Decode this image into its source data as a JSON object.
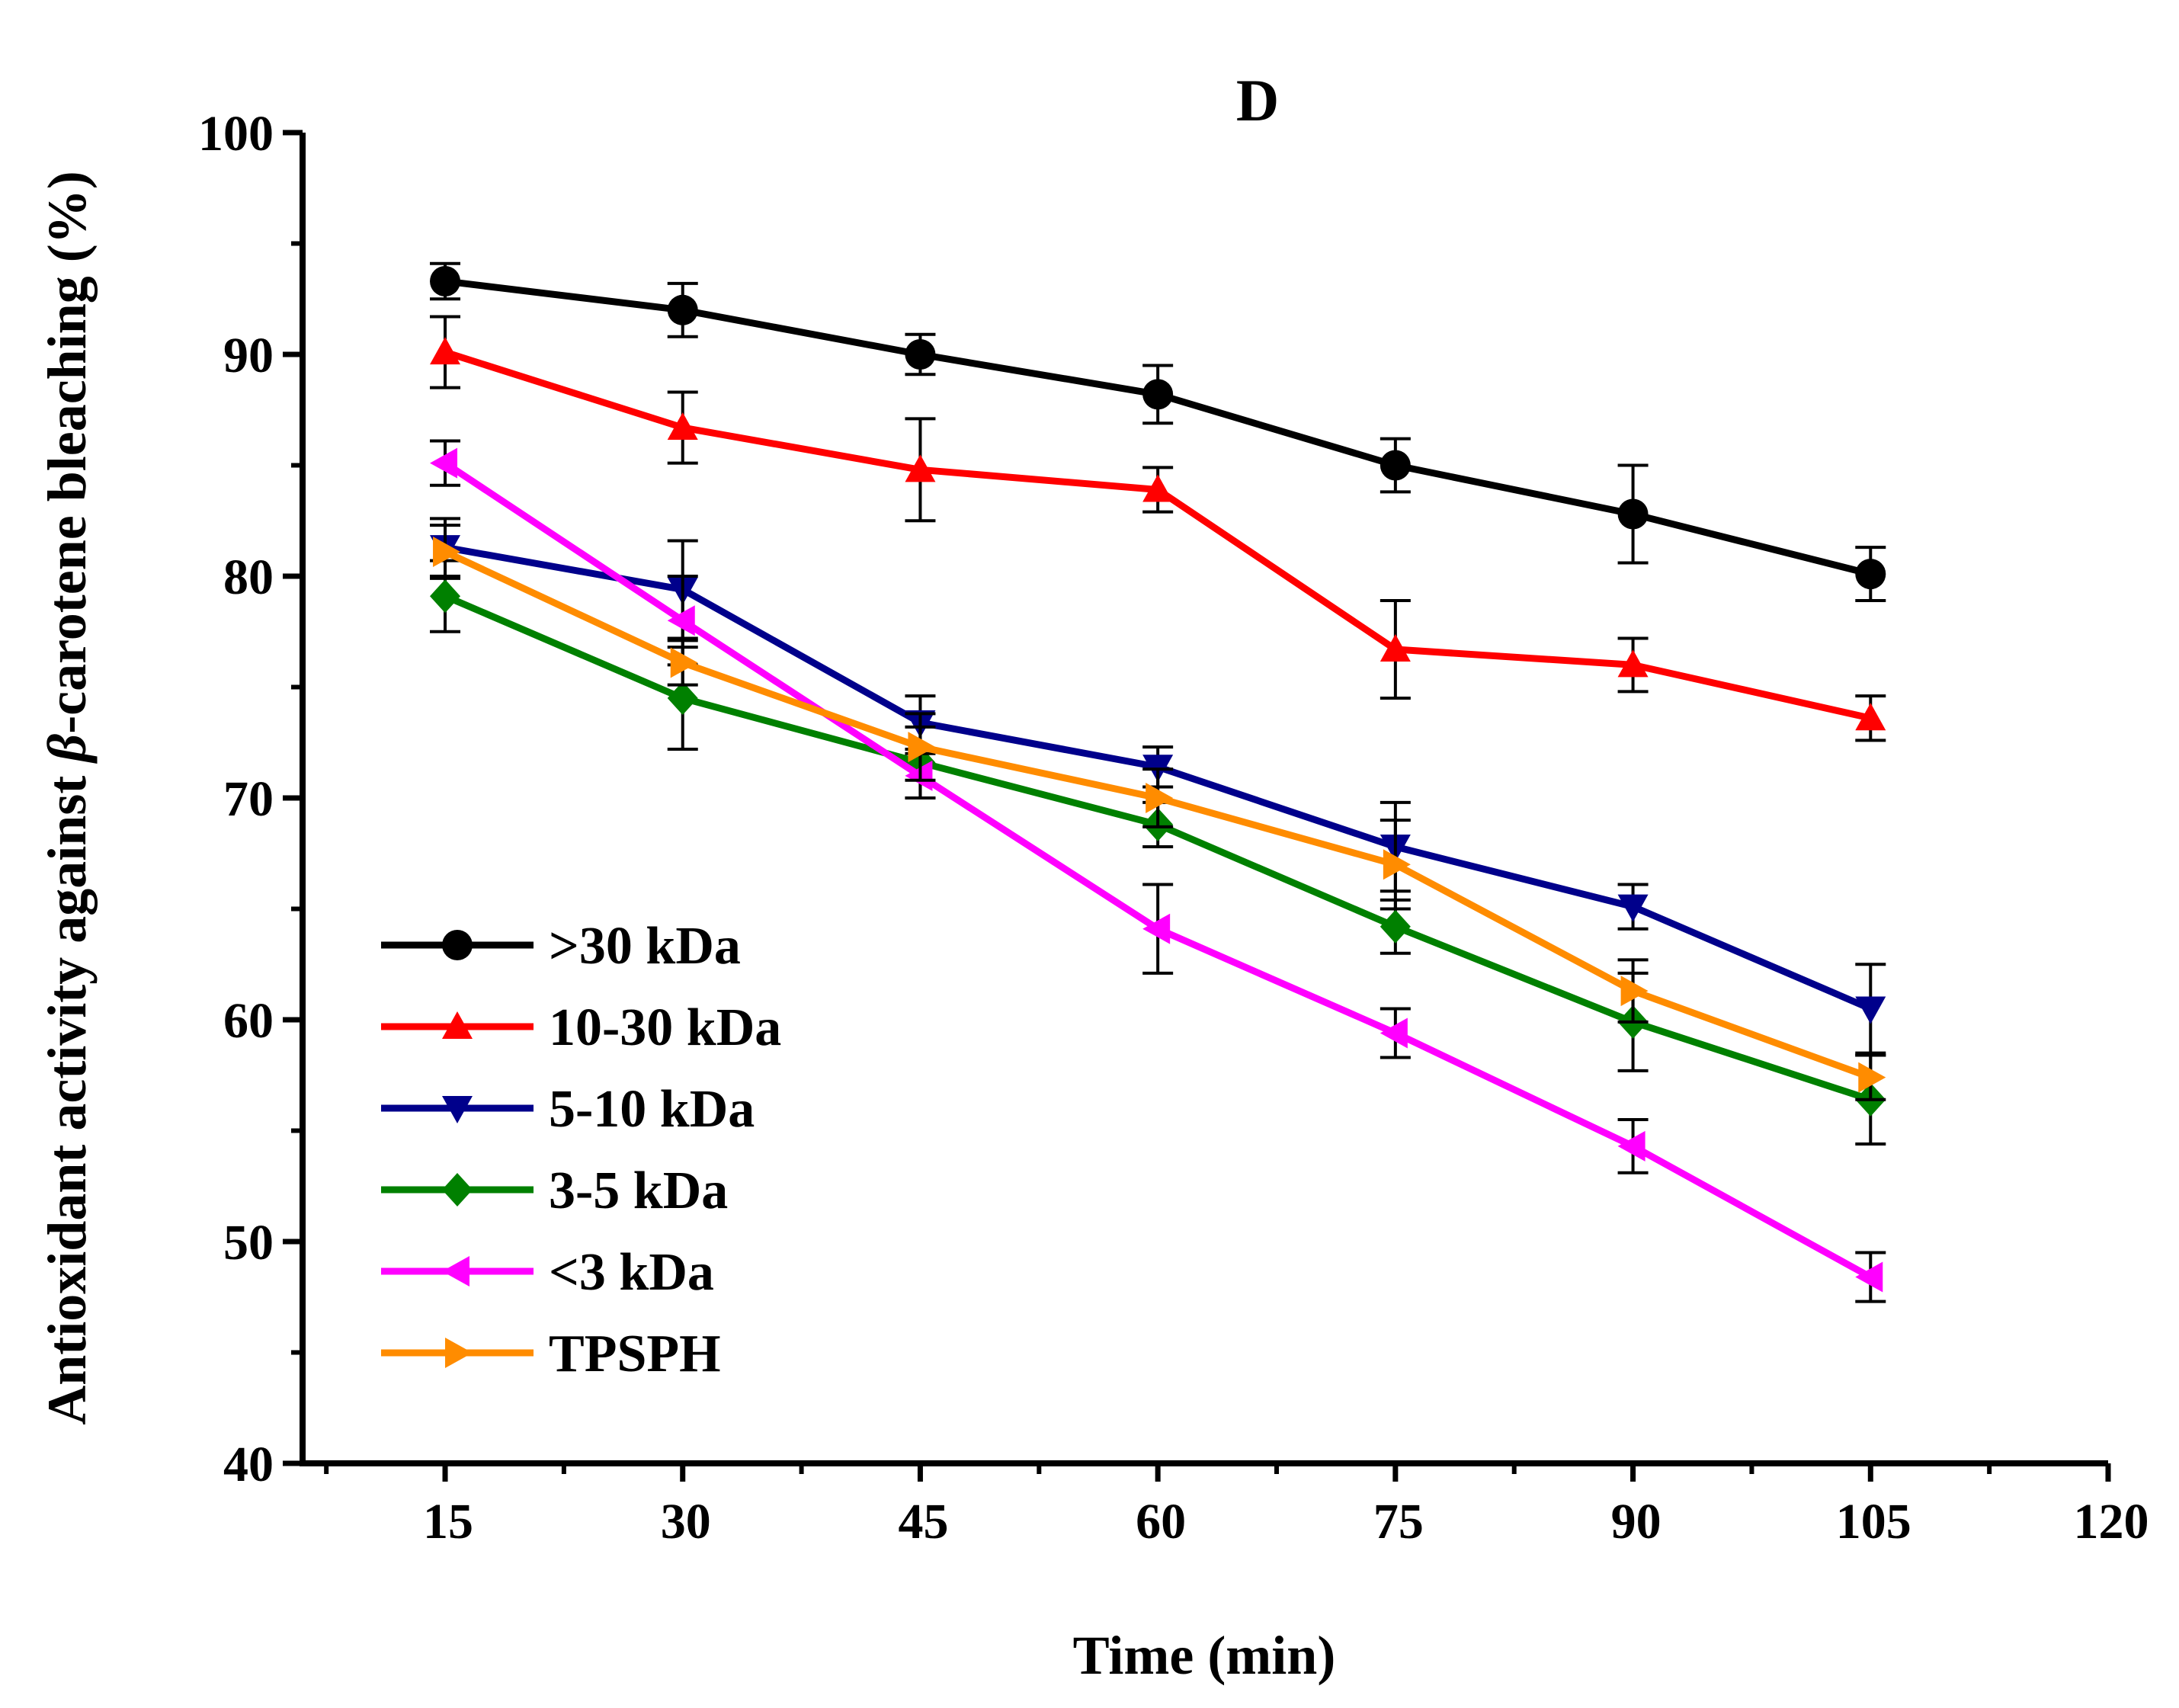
{
  "chart_data": {
    "type": "line",
    "panel_label": "D",
    "xlabel": "Time (min)",
    "ylabel_prefix": "Antioxidant activity against ",
    "ylabel_symbol": "β",
    "ylabel_suffix": "-carotene bleaching (%)",
    "xlim": [
      6,
      120
    ],
    "ylim": [
      40,
      100
    ],
    "x_ticks": [
      15,
      30,
      45,
      60,
      75,
      90,
      105,
      120
    ],
    "y_ticks": [
      40,
      50,
      60,
      70,
      80,
      90,
      100
    ],
    "x": [
      15,
      30,
      45,
      60,
      75,
      90,
      105
    ],
    "legend_position": "lower-left",
    "series": [
      {
        "name": ">30 kDa",
        "color": "#000000",
        "marker": "circle",
        "values": [
          93.3,
          92.0,
          90.0,
          88.2,
          85.0,
          82.8,
          80.1
        ],
        "errors": [
          0.8,
          1.2,
          0.9,
          1.3,
          1.2,
          2.2,
          1.2
        ]
      },
      {
        "name": "10-30 kDa",
        "color": "#ff0000",
        "marker": "triangle-up",
        "values": [
          90.1,
          86.7,
          84.8,
          83.9,
          76.7,
          76.0,
          73.6
        ],
        "errors": [
          1.6,
          1.6,
          2.3,
          1.0,
          2.2,
          1.2,
          1.0
        ]
      },
      {
        "name": "5-10 kDa",
        "color": "#00008b",
        "marker": "triangle-down",
        "values": [
          81.3,
          79.4,
          73.4,
          71.4,
          67.8,
          65.1,
          60.5
        ],
        "errors": [
          1.3,
          2.2,
          1.2,
          0.9,
          2.0,
          1.0,
          2.0
        ]
      },
      {
        "name": "3-5 kDa",
        "color": "#008000",
        "marker": "diamond",
        "values": [
          79.1,
          74.5,
          71.6,
          68.8,
          64.2,
          59.9,
          56.4
        ],
        "errors": [
          1.6,
          2.3,
          1.6,
          1.0,
          1.2,
          2.2,
          2.0
        ]
      },
      {
        "name": "<3 kDa",
        "color": "#ff00ff",
        "marker": "triangle-left",
        "values": [
          85.1,
          78.0,
          71.0,
          64.1,
          59.4,
          54.3,
          48.4
        ],
        "errors": [
          1.0,
          2.0,
          1.0,
          2.0,
          1.1,
          1.2,
          1.1
        ]
      },
      {
        "name": "TPSPH",
        "color": "#ff8c00",
        "marker": "triangle-right",
        "values": [
          81.1,
          76.1,
          72.3,
          70.0,
          67.0,
          61.3,
          57.4
        ],
        "errors": [
          1.2,
          1.0,
          1.5,
          1.3,
          2.0,
          1.4,
          1.0
        ]
      }
    ]
  }
}
